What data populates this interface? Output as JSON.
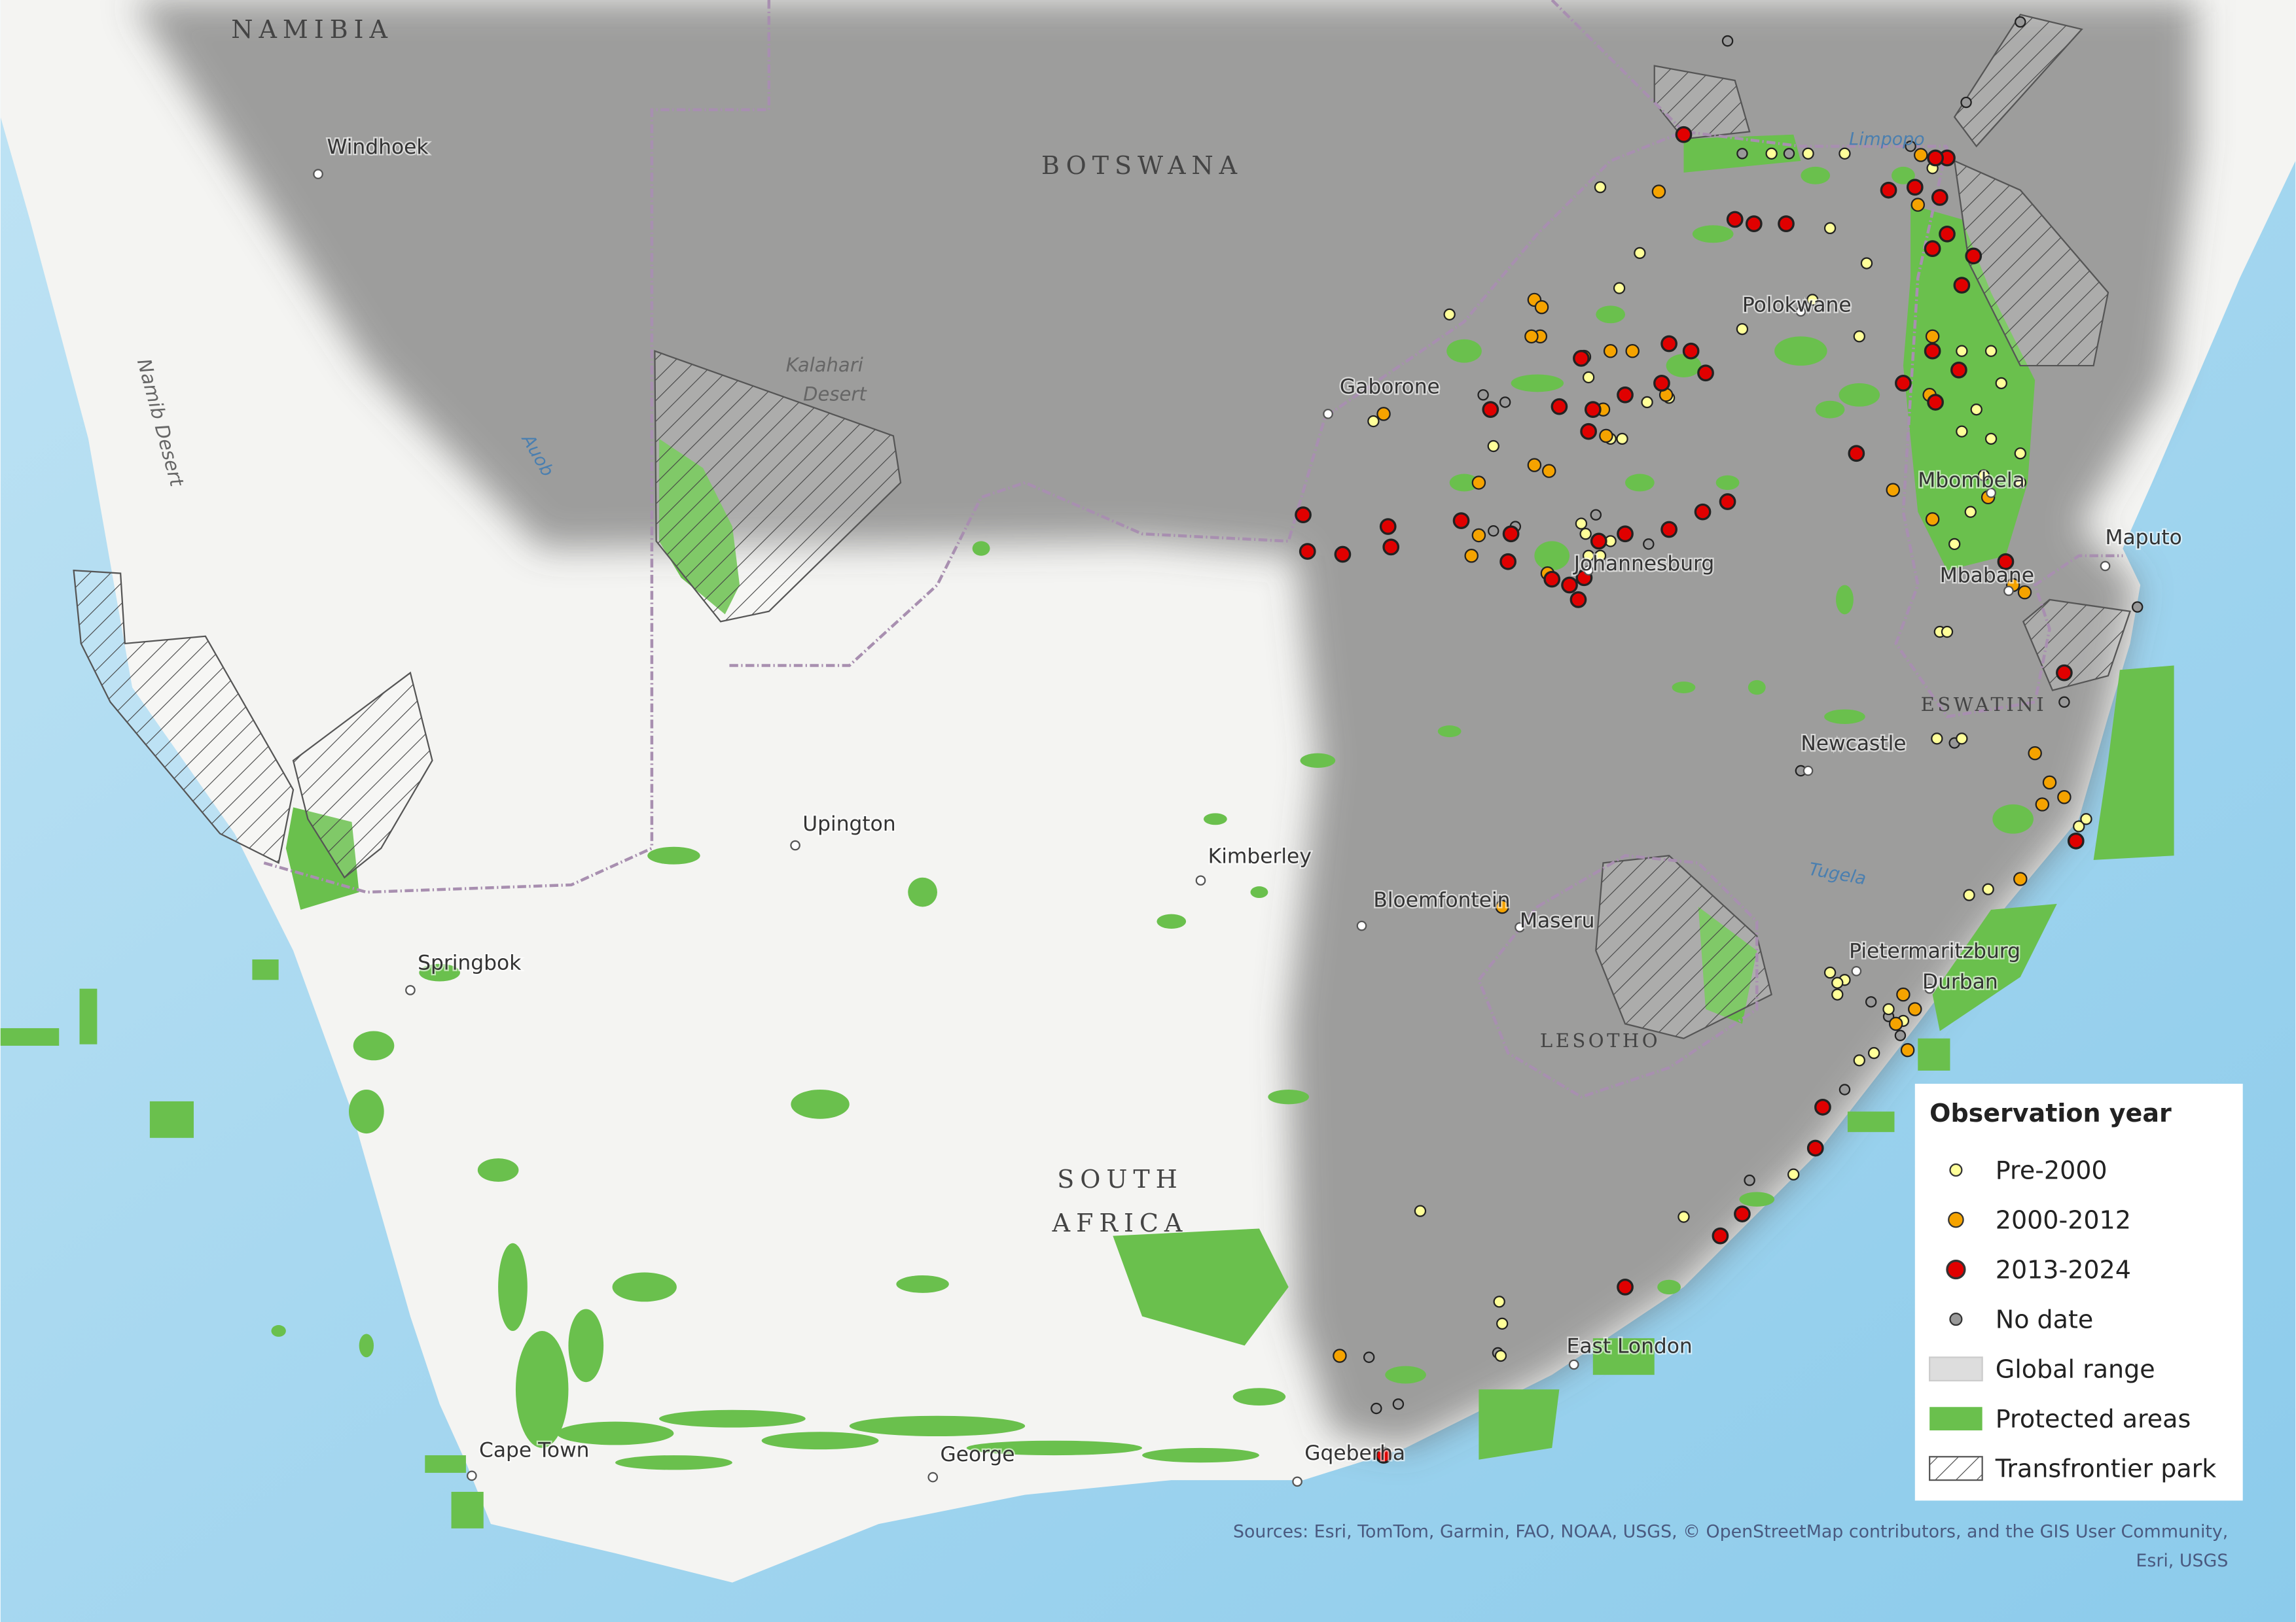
{
  "map": {
    "countries": [
      "NAMIBIA",
      "BOTSWANA",
      "SOUTH",
      "AFRICA",
      "LESOTHO",
      "ESWATINI"
    ],
    "features": [
      "Kalahari",
      "Desert",
      "Namib Desert",
      "Auob",
      "Limpopo",
      "Tugela"
    ],
    "places": [
      "Windhoek",
      "Gaborone",
      "Polokwane",
      "Mbombela",
      "Maputo",
      "Mbabane",
      "Johannesburg",
      "Newcastle",
      "Upington",
      "Kimberley",
      "Bloemfontein",
      "Maseru",
      "Pietermaritzburg",
      "Durban",
      "Springbok",
      "East London",
      "Cape Town",
      "George",
      "Gqeberha"
    ]
  },
  "legend": {
    "title": "Observation year",
    "items": [
      "Pre-2000",
      "2000-2012",
      "2013-2024",
      "No date",
      "Global range",
      "Protected areas",
      "Transfrontier park"
    ]
  },
  "sources": [
    "Sources: Esri, TomTom, Garmin, FAO, NOAA, USGS, © OpenStreetMap contributors, and the GIS User Community,",
    "Esri, USGS"
  ]
}
